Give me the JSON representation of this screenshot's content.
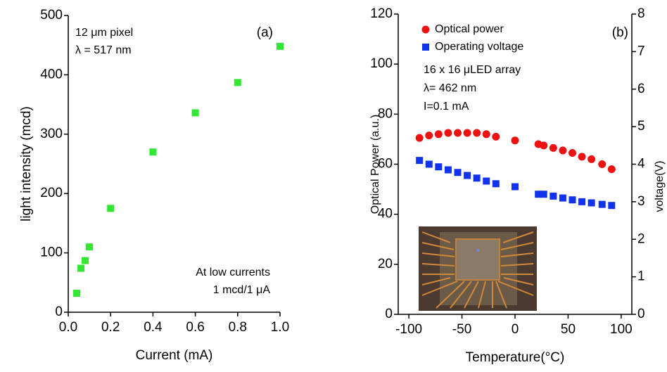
{
  "chart_data": [
    {
      "type": "scatter",
      "x_label": "Current (mA)",
      "y_label": "light intensity (mcd)",
      "x": [
        0.04,
        0.06,
        0.08,
        0.1,
        0.2,
        0.4,
        0.6,
        0.8,
        1.0
      ],
      "series": [
        {
          "color": "#33e633",
          "marker": "square",
          "values": [
            32,
            74,
            87,
            110,
            175,
            270,
            336,
            387,
            448
          ]
        }
      ],
      "xlim": [
        0,
        1
      ],
      "ylim": [
        0,
        500
      ],
      "xticks": [
        {
          "value": 0,
          "label": "0.0"
        },
        0.2,
        0.4,
        0.6,
        0.8,
        {
          "value": 1,
          "label": "1.0"
        }
      ],
      "yticks": [
        0,
        100,
        200,
        300,
        400,
        500
      ],
      "annotations": [
        "12 μm pixel",
        "λ = 517 nm",
        "(a)",
        "At low currents",
        "1 mcd/1 μA"
      ]
    },
    {
      "type": "scatter",
      "x_label": "Temperature(°C)",
      "y_label": "Optical Power (a.u.)",
      "y2_label": "voltage(V)",
      "x": [
        -90,
        -81,
        -72,
        -63,
        -54,
        -45,
        -36,
        -27,
        -18,
        0,
        22,
        27,
        36,
        45,
        54,
        63,
        72,
        82,
        91
      ],
      "series": [
        {
          "name": "Optical power",
          "color": "#ee1111",
          "marker": "circle",
          "values": [
            70.5,
            71.5,
            72,
            72.5,
            72.5,
            72.5,
            72.5,
            72,
            71,
            69.5,
            68,
            67.5,
            66.5,
            65.5,
            64.5,
            63,
            62,
            60,
            58
          ]
        },
        {
          "name": "Operating voltage",
          "color": "#1133ee",
          "marker": "square",
          "axis": "y2",
          "values": [
            4.1,
            4.0,
            3.93,
            3.85,
            3.78,
            3.7,
            3.63,
            3.55,
            3.48,
            3.4,
            3.2,
            3.2,
            3.15,
            3.1,
            3.05,
            3.0,
            2.97,
            2.93,
            2.9
          ]
        }
      ],
      "xlim": [
        -110,
        110
      ],
      "ylim": [
        0,
        120
      ],
      "y2lim": [
        0,
        8
      ],
      "xticks": [
        -100,
        -50,
        0,
        50,
        100
      ],
      "yticks": [
        0,
        20,
        40,
        60,
        80,
        100,
        120
      ],
      "y2ticks": [
        0,
        1,
        2,
        3,
        4,
        5,
        6,
        7,
        8
      ],
      "annotations": [
        "(b)",
        "16 x 16 μLED array",
        "λ= 462 nm",
        "I=0.1 mA"
      ]
    }
  ]
}
